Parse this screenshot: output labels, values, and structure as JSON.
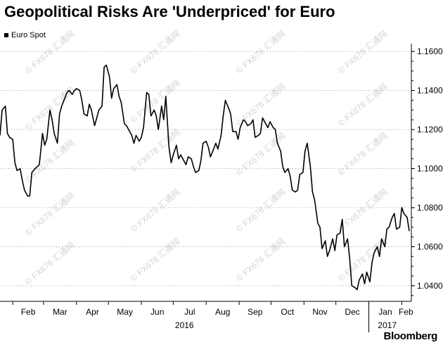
{
  "chart_data": {
    "type": "line",
    "title": "Geopolitical Risks Are 'Underpriced' for Euro",
    "legend": [
      {
        "name": "Euro Spot",
        "color": "#000000"
      }
    ],
    "legend_placement": "top-left",
    "y_axis_side": "right",
    "ylim": [
      1.032,
      1.164
    ],
    "yticks": [
      "1.1600",
      "1.1400",
      "1.1200",
      "1.1000",
      "1.0800",
      "1.0600",
      "1.0400"
    ],
    "xlim": [
      "2016-01-20",
      "2017-02-10"
    ],
    "xticks": [
      {
        "label": "Feb",
        "date": "2016-02-01"
      },
      {
        "label": "Mar",
        "date": "2016-03-01"
      },
      {
        "label": "Apr",
        "date": "2016-04-01"
      },
      {
        "label": "May",
        "date": "2016-05-01"
      },
      {
        "label": "Jun",
        "date": "2016-06-01"
      },
      {
        "label": "Jul",
        "date": "2016-07-01"
      },
      {
        "label": "Aug",
        "date": "2016-08-01"
      },
      {
        "label": "Sep",
        "date": "2016-09-01"
      },
      {
        "label": "Oct",
        "date": "2016-10-01"
      },
      {
        "label": "Nov",
        "date": "2016-11-01"
      },
      {
        "label": "Dec",
        "date": "2016-12-01"
      },
      {
        "label": "Jan",
        "date": "2017-01-01"
      },
      {
        "label": "Feb",
        "date": "2017-02-01"
      }
    ],
    "year_labels": [
      {
        "label": "2016"
      },
      {
        "label": "2017"
      }
    ],
    "grid": "horizontal dotted",
    "series": [
      {
        "name": "Euro Spot",
        "color": "#000000",
        "points": [
          [
            "2016-01-20",
            1.117
          ],
          [
            "2016-01-22",
            1.13
          ],
          [
            "2016-01-25",
            1.132
          ],
          [
            "2016-01-27",
            1.118
          ],
          [
            "2016-01-29",
            1.116
          ],
          [
            "2016-02-01",
            1.115
          ],
          [
            "2016-02-03",
            1.103
          ],
          [
            "2016-02-05",
            1.099
          ],
          [
            "2016-02-08",
            1.1
          ],
          [
            "2016-02-10",
            1.094
          ],
          [
            "2016-02-12",
            1.089
          ],
          [
            "2016-02-15",
            1.086
          ],
          [
            "2016-02-17",
            1.086
          ],
          [
            "2016-02-19",
            1.098
          ],
          [
            "2016-02-22",
            1.1
          ],
          [
            "2016-02-24",
            1.101
          ],
          [
            "2016-02-26",
            1.102
          ],
          [
            "2016-02-29",
            1.118
          ],
          [
            "2016-03-02",
            1.112
          ],
          [
            "2016-03-04",
            1.115
          ],
          [
            "2016-03-07",
            1.13
          ],
          [
            "2016-03-09",
            1.125
          ],
          [
            "2016-03-11",
            1.118
          ],
          [
            "2016-03-14",
            1.113
          ],
          [
            "2016-03-16",
            1.128
          ],
          [
            "2016-03-18",
            1.132
          ],
          [
            "2016-03-21",
            1.136
          ],
          [
            "2016-03-23",
            1.139
          ],
          [
            "2016-03-25",
            1.14
          ],
          [
            "2016-03-28",
            1.138
          ],
          [
            "2016-03-30",
            1.14
          ],
          [
            "2016-04-01",
            1.141
          ],
          [
            "2016-04-04",
            1.14
          ],
          [
            "2016-04-06",
            1.135
          ],
          [
            "2016-04-08",
            1.128
          ],
          [
            "2016-04-11",
            1.127
          ],
          [
            "2016-04-13",
            1.133
          ],
          [
            "2016-04-15",
            1.13
          ],
          [
            "2016-04-18",
            1.122
          ],
          [
            "2016-04-20",
            1.126
          ],
          [
            "2016-04-22",
            1.13
          ],
          [
            "2016-04-25",
            1.132
          ],
          [
            "2016-04-27",
            1.152
          ],
          [
            "2016-04-29",
            1.153
          ],
          [
            "2016-05-02",
            1.147
          ],
          [
            "2016-05-04",
            1.136
          ],
          [
            "2016-05-06",
            1.141
          ],
          [
            "2016-05-09",
            1.143
          ],
          [
            "2016-05-11",
            1.137
          ],
          [
            "2016-05-13",
            1.134
          ],
          [
            "2016-05-16",
            1.123
          ],
          [
            "2016-05-18",
            1.122
          ],
          [
            "2016-05-20",
            1.12
          ],
          [
            "2016-05-23",
            1.117
          ],
          [
            "2016-05-25",
            1.113
          ],
          [
            "2016-05-27",
            1.117
          ],
          [
            "2016-05-30",
            1.114
          ],
          [
            "2016-06-01",
            1.116
          ],
          [
            "2016-06-03",
            1.121
          ],
          [
            "2016-06-06",
            1.139
          ],
          [
            "2016-06-08",
            1.138
          ],
          [
            "2016-06-10",
            1.127
          ],
          [
            "2016-06-13",
            1.13
          ],
          [
            "2016-06-15",
            1.127
          ],
          [
            "2016-06-17",
            1.12
          ],
          [
            "2016-06-20",
            1.132
          ],
          [
            "2016-06-22",
            1.125
          ],
          [
            "2016-06-24",
            1.137
          ],
          [
            "2016-06-27",
            1.111
          ],
          [
            "2016-06-29",
            1.103
          ],
          [
            "2016-07-01",
            1.107
          ],
          [
            "2016-07-04",
            1.112
          ],
          [
            "2016-07-06",
            1.105
          ],
          [
            "2016-07-08",
            1.107
          ],
          [
            "2016-07-11",
            1.104
          ],
          [
            "2016-07-13",
            1.102
          ],
          [
            "2016-07-15",
            1.106
          ],
          [
            "2016-07-18",
            1.105
          ],
          [
            "2016-07-20",
            1.101
          ],
          [
            "2016-07-22",
            1.098
          ],
          [
            "2016-07-25",
            1.099
          ],
          [
            "2016-07-27",
            1.104
          ],
          [
            "2016-07-29",
            1.113
          ],
          [
            "2016-08-01",
            1.114
          ],
          [
            "2016-08-03",
            1.111
          ],
          [
            "2016-08-05",
            1.106
          ],
          [
            "2016-08-08",
            1.11
          ],
          [
            "2016-08-10",
            1.113
          ],
          [
            "2016-08-12",
            1.11
          ],
          [
            "2016-08-15",
            1.117
          ],
          [
            "2016-08-17",
            1.127
          ],
          [
            "2016-08-19",
            1.135
          ],
          [
            "2016-08-22",
            1.131
          ],
          [
            "2016-08-24",
            1.128
          ],
          [
            "2016-08-26",
            1.119
          ],
          [
            "2016-08-29",
            1.119
          ],
          [
            "2016-08-31",
            1.115
          ],
          [
            "2016-09-02",
            1.121
          ],
          [
            "2016-09-05",
            1.125
          ],
          [
            "2016-09-07",
            1.124
          ],
          [
            "2016-09-09",
            1.122
          ],
          [
            "2016-09-12",
            1.123
          ],
          [
            "2016-09-14",
            1.125
          ],
          [
            "2016-09-16",
            1.116
          ],
          [
            "2016-09-19",
            1.117
          ],
          [
            "2016-09-21",
            1.118
          ],
          [
            "2016-09-23",
            1.126
          ],
          [
            "2016-09-26",
            1.123
          ],
          [
            "2016-09-28",
            1.121
          ],
          [
            "2016-09-30",
            1.124
          ],
          [
            "2016-10-03",
            1.121
          ],
          [
            "2016-10-05",
            1.12
          ],
          [
            "2016-10-07",
            1.113
          ],
          [
            "2016-10-10",
            1.109
          ],
          [
            "2016-10-12",
            1.101
          ],
          [
            "2016-10-14",
            1.098
          ],
          [
            "2016-10-17",
            1.1
          ],
          [
            "2016-10-19",
            1.096
          ],
          [
            "2016-10-21",
            1.089
          ],
          [
            "2016-10-24",
            1.088
          ],
          [
            "2016-10-26",
            1.089
          ],
          [
            "2016-10-28",
            1.097
          ],
          [
            "2016-10-31",
            1.098
          ],
          [
            "2016-11-02",
            1.109
          ],
          [
            "2016-11-04",
            1.113
          ],
          [
            "2016-11-07",
            1.101
          ],
          [
            "2016-11-09",
            1.088
          ],
          [
            "2016-11-11",
            1.084
          ],
          [
            "2016-11-14",
            1.072
          ],
          [
            "2016-11-16",
            1.07
          ],
          [
            "2016-11-18",
            1.059
          ],
          [
            "2016-11-21",
            1.063
          ],
          [
            "2016-11-23",
            1.055
          ],
          [
            "2016-11-25",
            1.058
          ],
          [
            "2016-11-28",
            1.064
          ],
          [
            "2016-11-30",
            1.058
          ],
          [
            "2016-12-02",
            1.066
          ],
          [
            "2016-12-05",
            1.067
          ],
          [
            "2016-12-07",
            1.074
          ],
          [
            "2016-12-09",
            1.06
          ],
          [
            "2016-12-12",
            1.064
          ],
          [
            "2016-12-14",
            1.054
          ],
          [
            "2016-12-16",
            1.04
          ],
          [
            "2016-12-19",
            1.039
          ],
          [
            "2016-12-21",
            1.038
          ],
          [
            "2016-12-23",
            1.043
          ],
          [
            "2016-12-26",
            1.046
          ],
          [
            "2016-12-28",
            1.041
          ],
          [
            "2016-12-30",
            1.047
          ],
          [
            "2017-01-02",
            1.042
          ],
          [
            "2017-01-04",
            1.052
          ],
          [
            "2017-01-06",
            1.057
          ],
          [
            "2017-01-09",
            1.06
          ],
          [
            "2017-01-11",
            1.055
          ],
          [
            "2017-01-13",
            1.064
          ],
          [
            "2017-01-16",
            1.06
          ],
          [
            "2017-01-18",
            1.069
          ],
          [
            "2017-01-20",
            1.07
          ],
          [
            "2017-01-23",
            1.075
          ],
          [
            "2017-01-25",
            1.077
          ],
          [
            "2017-01-27",
            1.069
          ],
          [
            "2017-01-30",
            1.07
          ],
          [
            "2017-02-01",
            1.08
          ],
          [
            "2017-02-03",
            1.077
          ],
          [
            "2017-02-06",
            1.075
          ],
          [
            "2017-02-08",
            1.068
          ]
        ]
      }
    ]
  },
  "watermark": "© FX678 汇通网",
  "brand": "Bloomberg"
}
